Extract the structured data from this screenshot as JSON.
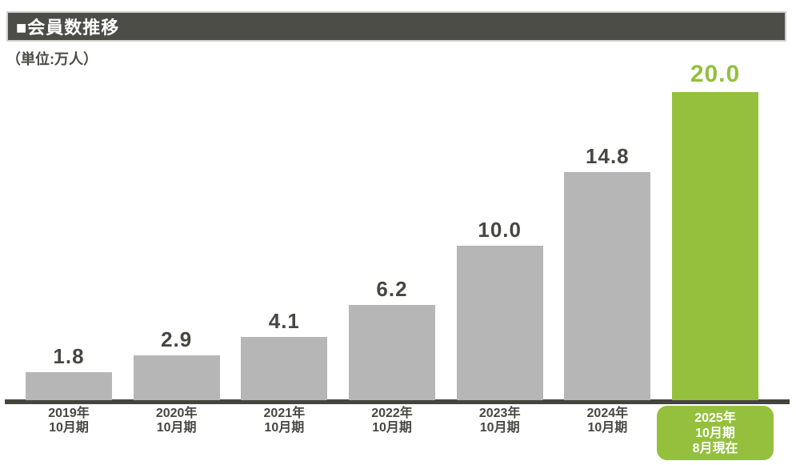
{
  "header": {
    "title": "■会員数推移"
  },
  "unit_label": "（単位:万人）",
  "colors": {
    "header_bg": "#4d4d48",
    "header_border": "#d2d2cd",
    "header_text": "#ffffff",
    "bar_gray": "#b5b6b5",
    "bar_green": "#94c03d",
    "axis_line": "#45453f",
    "label_dark": "#474742",
    "badge_text": "#ffffff"
  },
  "chart_data": {
    "type": "bar",
    "title": "会員数推移",
    "unit": "万人",
    "categories": [
      [
        "2019年",
        "10月期"
      ],
      [
        "2020年",
        "10月期"
      ],
      [
        "2021年",
        "10月期"
      ],
      [
        "2022年",
        "10月期"
      ],
      [
        "2023年",
        "10月期"
      ],
      [
        "2024年",
        "10月期"
      ],
      [
        "2025年",
        "10月期",
        "8月現在"
      ]
    ],
    "values": [
      1.8,
      2.9,
      4.1,
      6.2,
      10.0,
      14.8,
      20.0
    ],
    "value_labels": [
      "1.8",
      "2.9",
      "4.1",
      "6.2",
      "10.0",
      "14.8",
      "20.0"
    ],
    "highlight_index": 6,
    "ylim": [
      0,
      20
    ],
    "grid": false,
    "legend": "none",
    "xlabel": "",
    "ylabel": "万人"
  }
}
